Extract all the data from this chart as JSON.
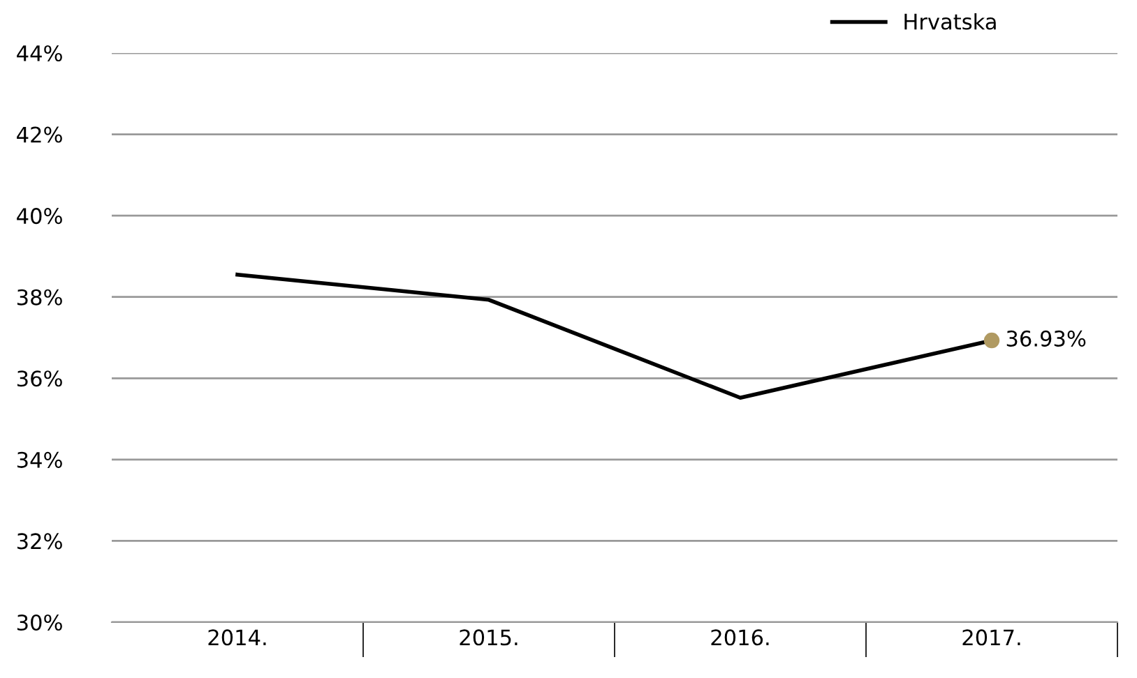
{
  "chart_data": {
    "type": "line",
    "categories": [
      "2014.",
      "2015.",
      "2016.",
      "2017."
    ],
    "series": [
      {
        "name": "Hrvatska",
        "color": "#000000",
        "values": [
          38.55,
          37.93,
          35.52,
          36.93
        ]
      },
      {
        "type": "scatter",
        "color": "#b09a62",
        "values": [
          null,
          null,
          null,
          36.93
        ],
        "value_labels": [
          null,
          null,
          null,
          "36.93%"
        ]
      }
    ],
    "ylim": [
      30,
      44
    ],
    "yticks": [
      {
        "value": 30,
        "label": "30%"
      },
      {
        "value": 32,
        "label": "32%"
      },
      {
        "value": 34,
        "label": "34%"
      },
      {
        "value": 36,
        "label": "36%"
      },
      {
        "value": 38,
        "label": "38%"
      },
      {
        "value": 40,
        "label": "40%"
      },
      {
        "value": 42,
        "label": "42%"
      },
      {
        "value": 44,
        "label": "44%"
      }
    ],
    "grid": "y",
    "legend": "top right"
  }
}
